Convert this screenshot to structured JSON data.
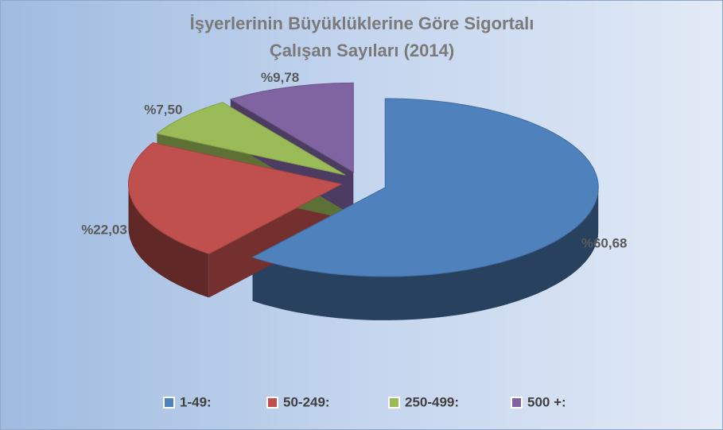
{
  "chart_data": {
    "type": "pie3d",
    "title": "İşyerlerinin Büyüklüklerine Göre Sigortalı Çalışan Sayıları (2014)",
    "categories": [
      "1-49:",
      "50-249:",
      "250-499:",
      "500 +:"
    ],
    "values": [
      60.68,
      22.03,
      7.5,
      9.78
    ],
    "value_labels": [
      "%60,68",
      "%22,03",
      "%7,50",
      "%9,78"
    ],
    "colors": [
      "#4f81bd",
      "#c0504d",
      "#9bbb59",
      "#8064a2"
    ],
    "legend": "bottom"
  }
}
